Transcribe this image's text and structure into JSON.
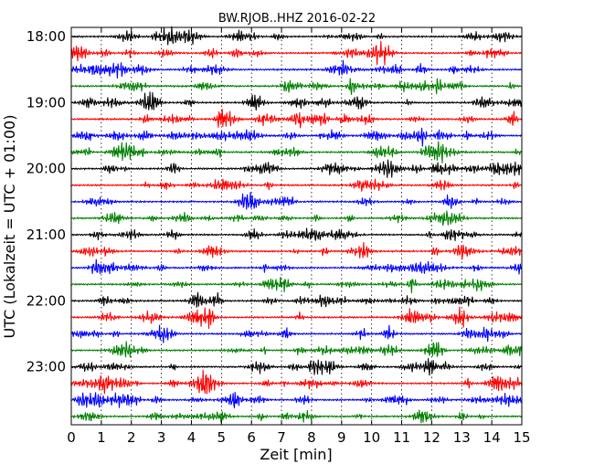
{
  "chart_data": {
    "type": "line",
    "title": "BW.RJOB..HHZ 2016-02-22",
    "xlabel": "Zeit  [min]",
    "ylabel": "UTC (Lokalzeit = UTC + 01:00)",
    "xlim": [
      0,
      15
    ],
    "x_ticks": [
      0,
      1,
      2,
      3,
      4,
      5,
      6,
      7,
      8,
      9,
      10,
      11,
      12,
      13,
      14,
      15
    ],
    "x_tick_labels": [
      "0",
      "1",
      "2",
      "3",
      "4",
      "5",
      "6",
      "7",
      "8",
      "9",
      "10",
      "11",
      "12",
      "13",
      "14",
      "15"
    ],
    "y_tick_labels": [
      "18:00",
      "19:00",
      "20:00",
      "21:00",
      "22:00",
      "23:00"
    ],
    "grid": "vertical dotted",
    "trace_minutes": 15,
    "traces_per_label": 4,
    "colors": [
      "#000000",
      "#ff0000",
      "#0000ff",
      "#008000"
    ],
    "series": [
      {
        "start": "18:00",
        "color": "#000000"
      },
      {
        "start": "18:15",
        "color": "#ff0000"
      },
      {
        "start": "18:30",
        "color": "#0000ff"
      },
      {
        "start": "18:45",
        "color": "#008000"
      },
      {
        "start": "19:00",
        "color": "#000000"
      },
      {
        "start": "19:15",
        "color": "#ff0000"
      },
      {
        "start": "19:30",
        "color": "#0000ff"
      },
      {
        "start": "19:45",
        "color": "#008000"
      },
      {
        "start": "20:00",
        "color": "#000000"
      },
      {
        "start": "20:15",
        "color": "#ff0000"
      },
      {
        "start": "20:30",
        "color": "#0000ff"
      },
      {
        "start": "20:45",
        "color": "#008000"
      },
      {
        "start": "21:00",
        "color": "#000000"
      },
      {
        "start": "21:15",
        "color": "#ff0000"
      },
      {
        "start": "21:30",
        "color": "#0000ff"
      },
      {
        "start": "21:45",
        "color": "#008000"
      },
      {
        "start": "22:00",
        "color": "#000000"
      },
      {
        "start": "22:15",
        "color": "#ff0000"
      },
      {
        "start": "22:30",
        "color": "#0000ff"
      },
      {
        "start": "22:45",
        "color": "#008000"
      },
      {
        "start": "23:00",
        "color": "#000000"
      },
      {
        "start": "23:15",
        "color": "#ff0000"
      },
      {
        "start": "23:30",
        "color": "#0000ff"
      },
      {
        "start": "23:45",
        "color": "#008000"
      }
    ]
  }
}
